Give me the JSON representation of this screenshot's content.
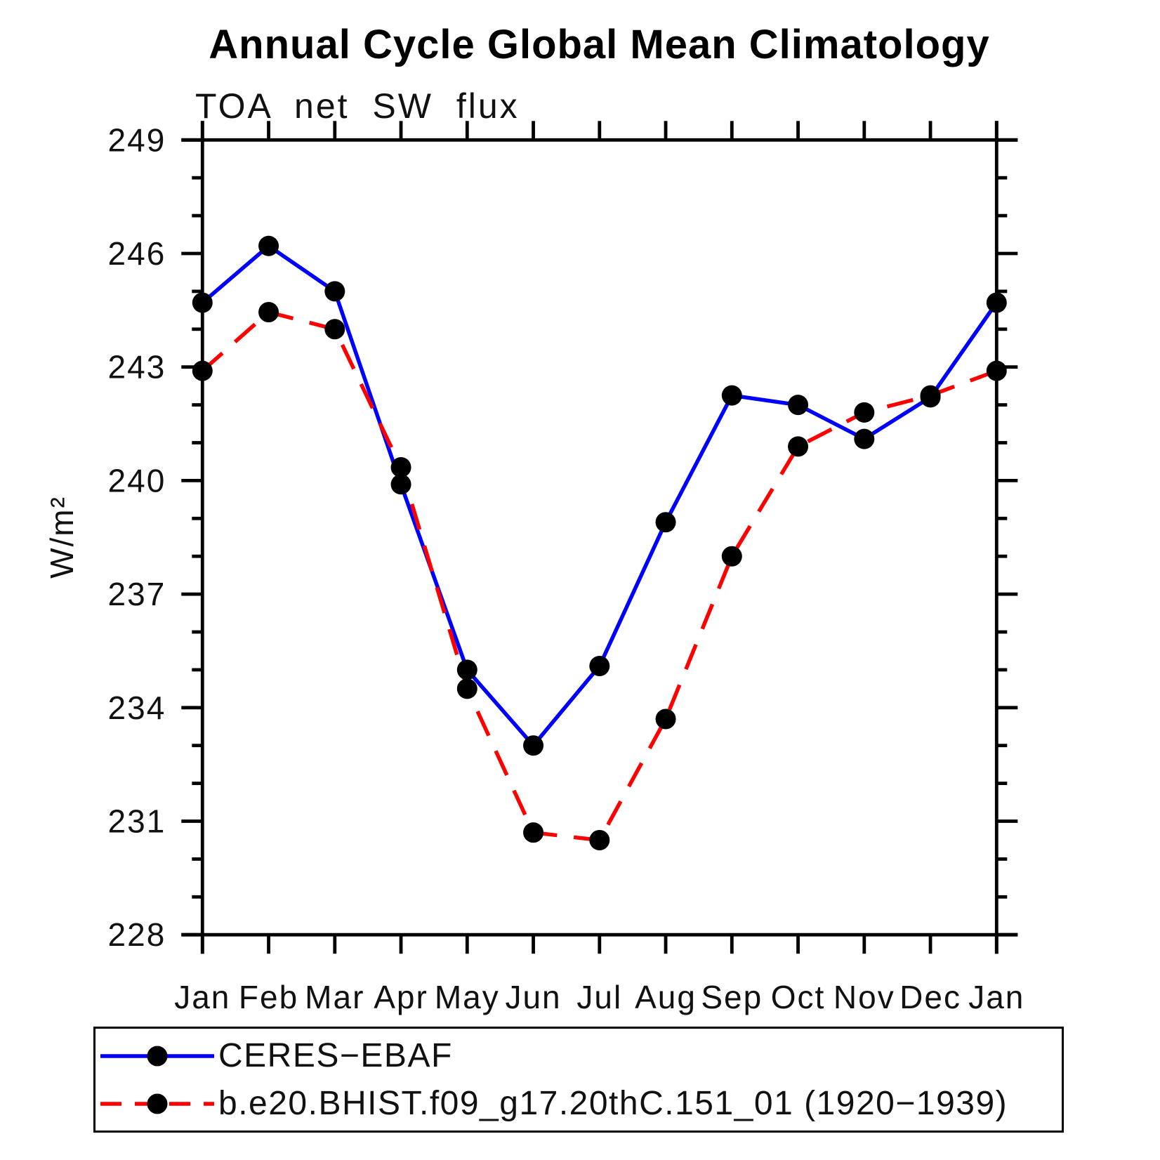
{
  "title": "Annual Cycle Global Mean Climatology",
  "subtitle": "TOA net SW flux",
  "ylabel": "W/m²",
  "chart_data": {
    "type": "line",
    "x_categories": [
      "Jan",
      "Feb",
      "Mar",
      "Apr",
      "May",
      "Jun",
      "Jul",
      "Aug",
      "Sep",
      "Oct",
      "Nov",
      "Dec",
      "Jan"
    ],
    "xlabel": "",
    "ylim": [
      228,
      249
    ],
    "ytick_major_step": 3,
    "ytick_minor_step": 1,
    "ytick_labels": [
      "228",
      "231",
      "234",
      "237",
      "240",
      "243",
      "246",
      "249"
    ],
    "grid": false,
    "legend_position": "bottom",
    "marker_color": "#000000",
    "series": [
      {
        "name": "CERES−EBAF",
        "color": "#0000ff",
        "style": "solid",
        "marker": "circle",
        "values": [
          244.7,
          246.2,
          245.0,
          239.9,
          235.0,
          233.0,
          235.1,
          238.9,
          242.25,
          242.0,
          241.1,
          242.2,
          244.7
        ]
      },
      {
        "name": "b.e20.BHIST.f09_g17.20thC.151_01 (1920−1939)",
        "color": "#ff0000",
        "style": "dashed",
        "marker": "circle",
        "values": [
          242.9,
          244.45,
          244.0,
          240.35,
          234.5,
          230.7,
          230.5,
          233.7,
          238.0,
          240.9,
          241.8,
          242.25,
          242.9
        ]
      }
    ]
  }
}
